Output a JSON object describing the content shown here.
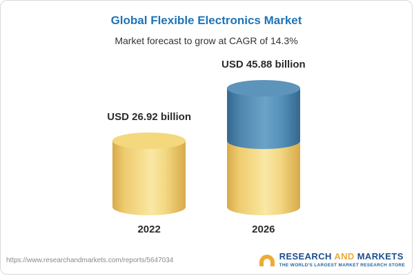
{
  "header": {
    "title": "Global Flexible Electronics Market",
    "subtitle": "Market forecast to grow at CAGR of 14.3%"
  },
  "chart_data": {
    "type": "bar",
    "title": "Global Flexible Electronics Market",
    "subtitle": "Market forecast to grow at CAGR of 14.3%",
    "unit": "USD billion",
    "cagr_percent": 14.3,
    "categories": [
      "2022",
      "2026"
    ],
    "values": [
      26.92,
      45.88
    ],
    "value_labels": [
      "USD 26.92 billion",
      "USD 45.88 billion"
    ],
    "stacked_2026": {
      "base_equals_2022": 26.92,
      "growth_segment": 18.96
    },
    "legend": "none",
    "grid": false,
    "colors": {
      "base_segment": "#F3D77D",
      "growth_segment": "#4C86AE",
      "title": "#1F73B7"
    }
  },
  "footer": {
    "url": "https://www.researchandmarkets.com/reports/5647034",
    "logo": {
      "research": "RESEARCH",
      "and": "AND",
      "markets": "MARKETS",
      "tagline": "THE WORLD'S LARGEST MARKET RESEARCH STORE"
    }
  }
}
